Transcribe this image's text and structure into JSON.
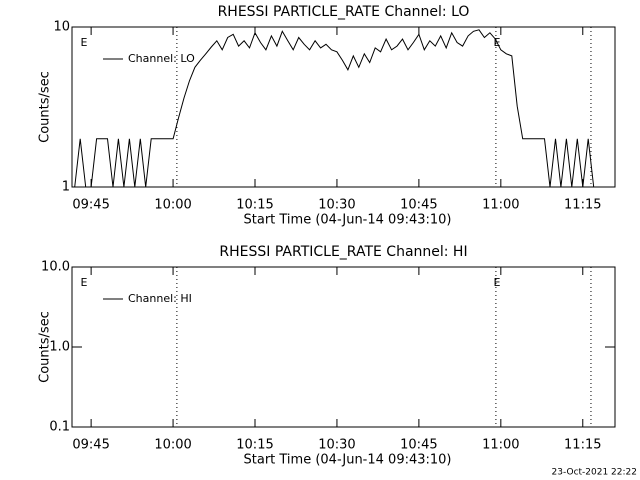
{
  "chart_data": [
    {
      "type": "line",
      "title": "RHESSI PARTICLE_RATE Channel: LO",
      "ylabel": "Counts/sec",
      "xlabel": "Start Time (04-Jun-14 09:43:10)",
      "log_y": true,
      "legend": "top-left",
      "ylim": [
        1,
        10
      ],
      "yticks": [
        1,
        10
      ],
      "xlim": [
        581.5,
        680.9
      ],
      "xticks": [
        {
          "value": 585,
          "label": "09:45"
        },
        {
          "value": 600,
          "label": "10:00"
        },
        {
          "value": 615,
          "label": "10:15"
        },
        {
          "value": 630,
          "label": "10:30"
        },
        {
          "value": 645,
          "label": "10:45"
        },
        {
          "value": 660,
          "label": "11:00"
        },
        {
          "value": 675,
          "label": "11:15"
        }
      ],
      "vlines": [
        600.7,
        659.1,
        676.5
      ],
      "annotations": [
        {
          "text": "E",
          "x": 583.7
        },
        {
          "text": "E",
          "x": 659.3
        }
      ],
      "series": [
        {
          "name": "Channel: LO",
          "color": "#000000",
          "x": [
            582,
            583,
            584,
            585,
            586,
            587,
            588,
            589,
            590,
            591,
            592,
            593,
            594,
            595,
            596,
            597,
            598,
            599,
            600,
            601,
            602,
            603,
            604,
            605,
            606,
            607,
            608,
            609,
            610,
            611,
            612,
            613,
            614,
            615,
            616,
            617,
            618,
            619,
            620,
            621,
            622,
            623,
            624,
            625,
            626,
            627,
            628,
            629,
            630,
            631,
            632,
            633,
            634,
            635,
            636,
            637,
            638,
            639,
            640,
            641,
            642,
            643,
            644,
            645,
            646,
            647,
            648,
            649,
            650,
            651,
            652,
            653,
            654,
            655,
            656,
            657,
            658,
            659,
            660,
            661,
            662,
            663,
            664,
            665,
            666,
            667,
            668,
            669,
            670,
            671,
            672,
            673,
            674,
            675,
            676,
            677
          ],
          "values": [
            1,
            2,
            1,
            1,
            2,
            2,
            2,
            1,
            2,
            1,
            2,
            1,
            2,
            1,
            2,
            2,
            2,
            2,
            2,
            2.7,
            3.6,
            4.6,
            5.6,
            6.2,
            6.8,
            7.5,
            8.2,
            7.2,
            8.6,
            9,
            7.6,
            8.2,
            7.4,
            9.2,
            8,
            7.2,
            8.8,
            7.6,
            9.4,
            8.2,
            7.2,
            8.6,
            7.8,
            7.2,
            8.2,
            7.4,
            7.8,
            7.2,
            7,
            6.2,
            5.4,
            6.6,
            5.6,
            6.8,
            6,
            7.4,
            7,
            8.4,
            7.2,
            7.6,
            8.4,
            7.2,
            8,
            9,
            7.2,
            8.2,
            7.6,
            8.8,
            7.4,
            9.2,
            8,
            7.6,
            8.8,
            9.4,
            9.6,
            8.6,
            9.2,
            8.4,
            7.2,
            6.8,
            6.6,
            3.2,
            2,
            2,
            2,
            2,
            2,
            1,
            2,
            1,
            2,
            1,
            2,
            1,
            2,
            1
          ]
        }
      ]
    },
    {
      "type": "line",
      "title": "RHESSI PARTICLE_RATE Channel: HI",
      "ylabel": "Counts/sec",
      "xlabel": "Start Time (04-Jun-14 09:43:10)",
      "log_y": true,
      "legend": "top-left",
      "ylim": [
        0.1,
        10
      ],
      "yticks": [
        {
          "value": 0.1,
          "label": "0.1"
        },
        {
          "value": 1,
          "label": "1.0"
        },
        {
          "value": 10,
          "label": "10.0"
        }
      ],
      "xlim": [
        581.5,
        680.9
      ],
      "xticks": [
        {
          "value": 585,
          "label": "09:45"
        },
        {
          "value": 600,
          "label": "10:00"
        },
        {
          "value": 615,
          "label": "10:15"
        },
        {
          "value": 630,
          "label": "10:30"
        },
        {
          "value": 645,
          "label": "10:45"
        },
        {
          "value": 660,
          "label": "11:00"
        },
        {
          "value": 675,
          "label": "11:15"
        }
      ],
      "vlines": [
        600.7,
        659.1,
        676.5
      ],
      "annotations": [
        {
          "text": "E",
          "x": 583.7
        },
        {
          "text": "E",
          "x": 659.3
        }
      ],
      "series": [
        {
          "name": "Channel: HI",
          "color": "#000000",
          "x": [],
          "values": []
        }
      ]
    }
  ],
  "footer": "23-Oct-2021 22:22"
}
